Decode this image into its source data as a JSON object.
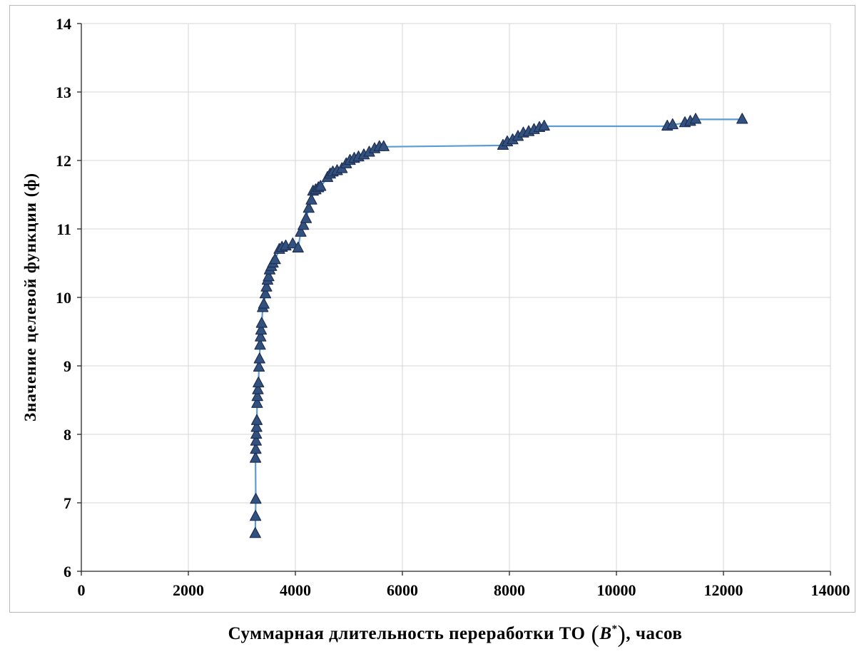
{
  "chart_data": {
    "type": "line",
    "title": "",
    "ylabel": "Значение целевой функции (ф)",
    "xlabel_parts": {
      "prefix": "Суммарная длительность переработки ТО",
      "paren_open": "(",
      "var": "B",
      "sup": "*",
      "paren_close": ")",
      "suffix": ", часов"
    },
    "xlim": [
      0,
      14000
    ],
    "ylim": [
      6,
      14
    ],
    "x_ticks": [
      0,
      2000,
      4000,
      6000,
      8000,
      10000,
      12000,
      14000
    ],
    "y_ticks": [
      6,
      7,
      8,
      9,
      10,
      11,
      12,
      13,
      14
    ],
    "grid": true,
    "legend": "none",
    "line_color": "#5b9bd5",
    "marker_color": "#33517e",
    "marker_edge_color": "#1c2f52",
    "grid_color": "#d6d6d6",
    "axis_color": "#262626",
    "border_color": "#b9b9b9",
    "points": [
      [
        3250,
        6.55
      ],
      [
        3255,
        6.8
      ],
      [
        3260,
        7.05
      ],
      [
        3255,
        7.65
      ],
      [
        3260,
        7.78
      ],
      [
        3265,
        7.9
      ],
      [
        3270,
        8.0
      ],
      [
        3275,
        8.1
      ],
      [
        3280,
        8.2
      ],
      [
        3285,
        8.45
      ],
      [
        3290,
        8.55
      ],
      [
        3300,
        8.65
      ],
      [
        3310,
        8.75
      ],
      [
        3320,
        8.98
      ],
      [
        3330,
        9.1
      ],
      [
        3340,
        9.3
      ],
      [
        3350,
        9.42
      ],
      [
        3360,
        9.52
      ],
      [
        3370,
        9.62
      ],
      [
        3390,
        9.85
      ],
      [
        3410,
        9.9
      ],
      [
        3440,
        10.05
      ],
      [
        3460,
        10.15
      ],
      [
        3480,
        10.25
      ],
      [
        3500,
        10.3
      ],
      [
        3520,
        10.4
      ],
      [
        3550,
        10.45
      ],
      [
        3580,
        10.5
      ],
      [
        3620,
        10.55
      ],
      [
        3700,
        10.7
      ],
      [
        3750,
        10.73
      ],
      [
        3820,
        10.75
      ],
      [
        3950,
        10.78
      ],
      [
        4050,
        10.72
      ],
      [
        4100,
        10.95
      ],
      [
        4150,
        11.05
      ],
      [
        4200,
        11.15
      ],
      [
        4250,
        11.3
      ],
      [
        4300,
        11.42
      ],
      [
        4330,
        11.55
      ],
      [
        4380,
        11.57
      ],
      [
        4430,
        11.6
      ],
      [
        4470,
        11.62
      ],
      [
        4600,
        11.75
      ],
      [
        4650,
        11.8
      ],
      [
        4700,
        11.83
      ],
      [
        4780,
        11.85
      ],
      [
        4870,
        11.88
      ],
      [
        4950,
        11.95
      ],
      [
        5020,
        12.0
      ],
      [
        5100,
        12.03
      ],
      [
        5180,
        12.05
      ],
      [
        5280,
        12.08
      ],
      [
        5380,
        12.12
      ],
      [
        5480,
        12.17
      ],
      [
        5570,
        12.2
      ],
      [
        5650,
        12.2
      ],
      [
        7880,
        12.22
      ],
      [
        7960,
        12.27
      ],
      [
        8060,
        12.3
      ],
      [
        8160,
        12.35
      ],
      [
        8260,
        12.4
      ],
      [
        8360,
        12.42
      ],
      [
        8460,
        12.45
      ],
      [
        8560,
        12.48
      ],
      [
        8650,
        12.5
      ],
      [
        10950,
        12.5
      ],
      [
        11050,
        12.52
      ],
      [
        11280,
        12.55
      ],
      [
        11380,
        12.57
      ],
      [
        11480,
        12.6
      ],
      [
        12350,
        12.6
      ]
    ]
  }
}
